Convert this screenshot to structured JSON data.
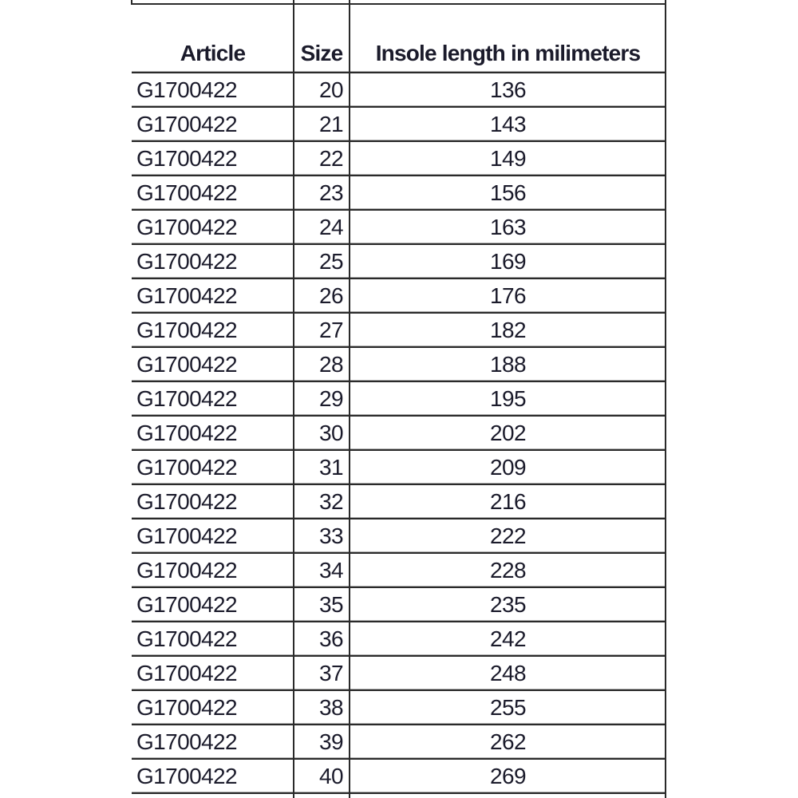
{
  "table": {
    "columns": [
      {
        "label": "Article"
      },
      {
        "label": "Size"
      },
      {
        "label": "Insole length in milimeters"
      }
    ],
    "rows": [
      {
        "article": "G1700422",
        "size": "20",
        "insole": "136"
      },
      {
        "article": "G1700422",
        "size": "21",
        "insole": "143"
      },
      {
        "article": "G1700422",
        "size": "22",
        "insole": "149"
      },
      {
        "article": "G1700422",
        "size": "23",
        "insole": "156"
      },
      {
        "article": "G1700422",
        "size": "24",
        "insole": "163"
      },
      {
        "article": "G1700422",
        "size": "25",
        "insole": "169"
      },
      {
        "article": "G1700422",
        "size": "26",
        "insole": "176"
      },
      {
        "article": "G1700422",
        "size": "27",
        "insole": "182"
      },
      {
        "article": "G1700422",
        "size": "28",
        "insole": "188"
      },
      {
        "article": "G1700422",
        "size": "29",
        "insole": "195"
      },
      {
        "article": "G1700422",
        "size": "30",
        "insole": "202"
      },
      {
        "article": "G1700422",
        "size": "31",
        "insole": "209"
      },
      {
        "article": "G1700422",
        "size": "32",
        "insole": "216"
      },
      {
        "article": "G1700422",
        "size": "33",
        "insole": "222"
      },
      {
        "article": "G1700422",
        "size": "34",
        "insole": "228"
      },
      {
        "article": "G1700422",
        "size": "35",
        "insole": "235"
      },
      {
        "article": "G1700422",
        "size": "36",
        "insole": "242"
      },
      {
        "article": "G1700422",
        "size": "37",
        "insole": "248"
      },
      {
        "article": "G1700422",
        "size": "38",
        "insole": "255"
      },
      {
        "article": "G1700422",
        "size": "39",
        "insole": "262"
      },
      {
        "article": "G1700422",
        "size": "40",
        "insole": "269"
      }
    ]
  },
  "colors": {
    "background": "#ffffff",
    "grid_line": "#2a2a2a",
    "grid_line_echo": "#adadad",
    "text": "#1b1b2b"
  }
}
